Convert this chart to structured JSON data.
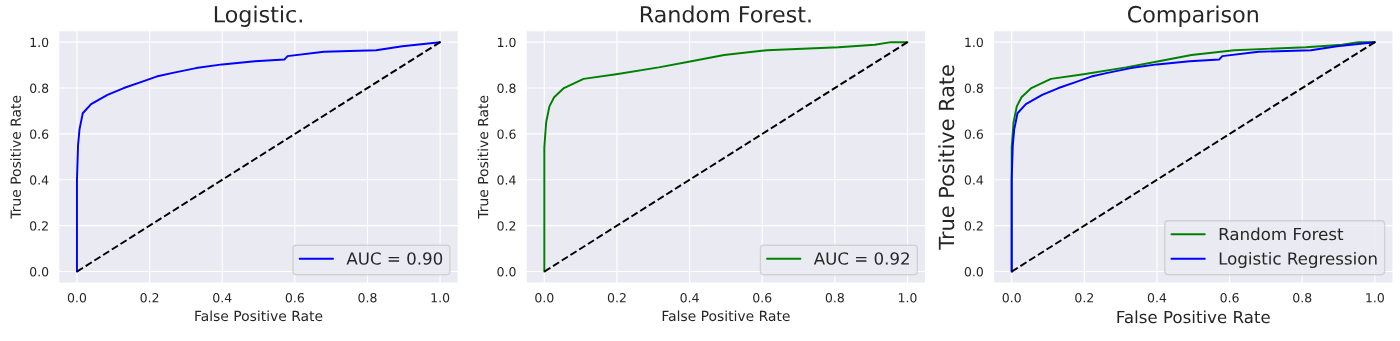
{
  "chart_data": [
    {
      "type": "line",
      "title": "Logistic.",
      "xlabel": "False Positive Rate",
      "ylabel": "True Positive Rate",
      "xlim": [
        -0.05,
        1.05
      ],
      "ylim": [
        -0.05,
        1.05
      ],
      "xticks": [
        {
          "value": 0,
          "label": "0.0"
        },
        {
          "value": 0.2,
          "label": "0.2"
        },
        {
          "value": 0.4,
          "label": "0.4"
        },
        {
          "value": 0.6,
          "label": "0.6"
        },
        {
          "value": 0.8,
          "label": "0.8"
        },
        {
          "value": 1,
          "label": "1.0"
        }
      ],
      "yticks": [
        {
          "value": 0,
          "label": "0.0"
        },
        {
          "value": 0.2,
          "label": "0.2"
        },
        {
          "value": 0.4,
          "label": "0.4"
        },
        {
          "value": 0.6,
          "label": "0.6"
        },
        {
          "value": 0.8,
          "label": "0.8"
        },
        {
          "value": 1,
          "label": "1.0"
        }
      ],
      "grid": true,
      "legend": "bottom right",
      "series": [
        {
          "name": "AUC = 0.90",
          "color": "#0000ff",
          "x": [
            0,
            0,
            0.003,
            0.007,
            0.016,
            0.039,
            0.084,
            0.129,
            0.174,
            0.219,
            0.264,
            0.328,
            0.4,
            0.49,
            0.571,
            0.58,
            0.68,
            0.824,
            0.896,
            1
          ],
          "values": [
            0,
            0.4,
            0.55,
            0.62,
            0.69,
            0.73,
            0.77,
            0.8,
            0.825,
            0.85,
            0.866,
            0.887,
            0.903,
            0.917,
            0.924,
            0.939,
            0.958,
            0.965,
            0.982,
            1
          ]
        },
        {
          "color": "#000000",
          "line_style": "dashed",
          "x": [
            0,
            1
          ],
          "values": [
            0,
            1
          ]
        }
      ]
    },
    {
      "type": "line",
      "title": "Random Forest.",
      "xlabel": "False Positive Rate",
      "ylabel": "True Positive Rate",
      "xlim": [
        -0.05,
        1.05
      ],
      "ylim": [
        -0.05,
        1.05
      ],
      "xticks": [
        {
          "value": 0,
          "label": "0.0"
        },
        {
          "value": 0.2,
          "label": "0.2"
        },
        {
          "value": 0.4,
          "label": "0.4"
        },
        {
          "value": 0.6,
          "label": "0.6"
        },
        {
          "value": 0.8,
          "label": "0.8"
        },
        {
          "value": 1,
          "label": "1.0"
        }
      ],
      "yticks": [
        {
          "value": 0,
          "label": "0.0"
        },
        {
          "value": 0.2,
          "label": "0.2"
        },
        {
          "value": 0.4,
          "label": "0.4"
        },
        {
          "value": 0.6,
          "label": "0.6"
        },
        {
          "value": 0.8,
          "label": "0.8"
        },
        {
          "value": 1,
          "label": "1.0"
        }
      ],
      "grid": true,
      "legend": "bottom right",
      "series": [
        {
          "name": "AUC = 0.92",
          "color": "#008000",
          "x": [
            0,
            0,
            0.005,
            0.014,
            0.027,
            0.054,
            0.108,
            0.198,
            0.315,
            0.405,
            0.495,
            0.613,
            0.81,
            0.91,
            0.955,
            1
          ],
          "values": [
            0,
            0.54,
            0.65,
            0.72,
            0.76,
            0.8,
            0.84,
            0.86,
            0.89,
            0.917,
            0.944,
            0.965,
            0.978,
            0.989,
            1,
            1
          ]
        },
        {
          "color": "#000000",
          "line_style": "dashed",
          "x": [
            0,
            1
          ],
          "values": [
            0,
            1
          ]
        }
      ]
    },
    {
      "type": "line",
      "title": "Comparison",
      "xlabel": "False Positive Rate",
      "ylabel": "True Positive Rate",
      "xlim": [
        -0.05,
        1.05
      ],
      "ylim": [
        -0.05,
        1.05
      ],
      "xticks": [
        {
          "value": 0,
          "label": "0.0"
        },
        {
          "value": 0.2,
          "label": "0.2"
        },
        {
          "value": 0.4,
          "label": "0.4"
        },
        {
          "value": 0.6,
          "label": "0.6"
        },
        {
          "value": 0.8,
          "label": "0.8"
        },
        {
          "value": 1,
          "label": "1.0"
        }
      ],
      "yticks": [
        {
          "value": 0,
          "label": "0.0"
        },
        {
          "value": 0.2,
          "label": "0.2"
        },
        {
          "value": 0.4,
          "label": "0.4"
        },
        {
          "value": 0.6,
          "label": "0.6"
        },
        {
          "value": 0.8,
          "label": "0.8"
        },
        {
          "value": 1,
          "label": "1.0"
        }
      ],
      "grid": true,
      "legend": "bottom right",
      "series": [
        {
          "name": "Random Forest",
          "color": "#008000",
          "x": [
            0,
            0,
            0.005,
            0.014,
            0.027,
            0.054,
            0.108,
            0.198,
            0.315,
            0.405,
            0.495,
            0.613,
            0.81,
            0.91,
            0.955,
            1
          ],
          "values": [
            0,
            0.54,
            0.65,
            0.72,
            0.76,
            0.8,
            0.84,
            0.86,
            0.89,
            0.917,
            0.944,
            0.965,
            0.978,
            0.989,
            1,
            1
          ]
        },
        {
          "name": "Logistic Regression",
          "color": "#0000ff",
          "x": [
            0,
            0,
            0.003,
            0.007,
            0.016,
            0.039,
            0.084,
            0.129,
            0.174,
            0.219,
            0.264,
            0.328,
            0.4,
            0.49,
            0.571,
            0.58,
            0.68,
            0.824,
            0.896,
            1
          ],
          "values": [
            0,
            0.4,
            0.55,
            0.62,
            0.69,
            0.73,
            0.77,
            0.8,
            0.825,
            0.85,
            0.866,
            0.887,
            0.903,
            0.917,
            0.924,
            0.939,
            0.958,
            0.965,
            0.982,
            1
          ]
        },
        {
          "color": "#000000",
          "line_style": "dashed",
          "x": [
            0,
            1
          ],
          "values": [
            0,
            1
          ]
        }
      ]
    }
  ]
}
